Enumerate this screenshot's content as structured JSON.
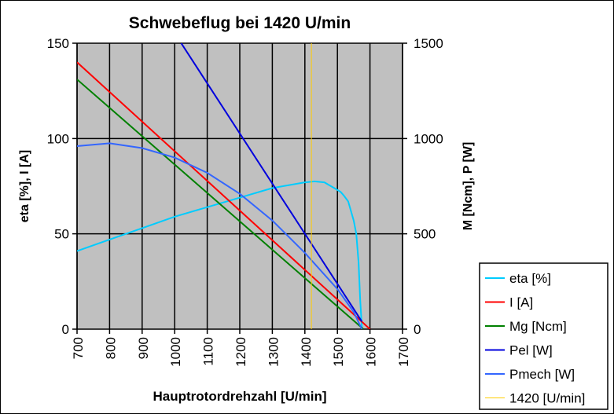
{
  "chart_data": {
    "type": "line",
    "title": "Schwebeflug bei 1420 U/min",
    "xlabel": "Hauptrotordrehzahl [U/min]",
    "ylabel": "eta [%], I [A]",
    "y2label": "M [Ncm], P [W]",
    "xlim": [
      700,
      1700
    ],
    "ylim": [
      0,
      150
    ],
    "y2lim": [
      0,
      1500
    ],
    "xticks": [
      700,
      800,
      900,
      1000,
      1100,
      1200,
      1300,
      1400,
      1500,
      1600,
      1700
    ],
    "yticks": [
      0,
      50,
      100,
      150
    ],
    "y2ticks": [
      0,
      500,
      1000,
      1500
    ],
    "grid": true,
    "legend_position": "bottom-right",
    "plot_background": "#c0c0c0",
    "series": [
      {
        "name": "eta [%]",
        "axis": "left",
        "color": "#00ccff",
        "x": [
          700,
          800,
          900,
          1000,
          1100,
          1200,
          1300,
          1400,
          1430,
          1460,
          1490,
          1510,
          1520,
          1533,
          1550,
          1558,
          1565,
          1570,
          1575
        ],
        "y": [
          41,
          47,
          53,
          59,
          64,
          69,
          74,
          77,
          77.5,
          77,
          74,
          72,
          70,
          67,
          57,
          50,
          35,
          15,
          1
        ]
      },
      {
        "name": "I [A]",
        "axis": "left",
        "color": "#ff0000",
        "x": [
          700,
          1600
        ],
        "y": [
          140,
          0
        ]
      },
      {
        "name": "Mg [Ncm]",
        "axis": "right",
        "color": "#008000",
        "x": [
          700,
          1580
        ],
        "y": [
          1310,
          0
        ]
      },
      {
        "name": "Pel [W]",
        "axis": "right",
        "color": "#0000dd",
        "x": [
          1020,
          1575
        ],
        "y": [
          1500,
          40
        ]
      },
      {
        "name": "Pmech [W]",
        "axis": "right",
        "color": "#3366ff",
        "x": [
          700,
          800,
          900,
          1000,
          1100,
          1200,
          1300,
          1400,
          1500,
          1550,
          1575
        ],
        "y": [
          960,
          975,
          950,
          900,
          820,
          710,
          570,
          400,
          210,
          90,
          0
        ]
      },
      {
        "name": "1420 [U/min]",
        "axis": "left",
        "color": "#ffcc00",
        "x": [
          1420,
          1420
        ],
        "y": [
          0,
          150
        ]
      }
    ]
  }
}
